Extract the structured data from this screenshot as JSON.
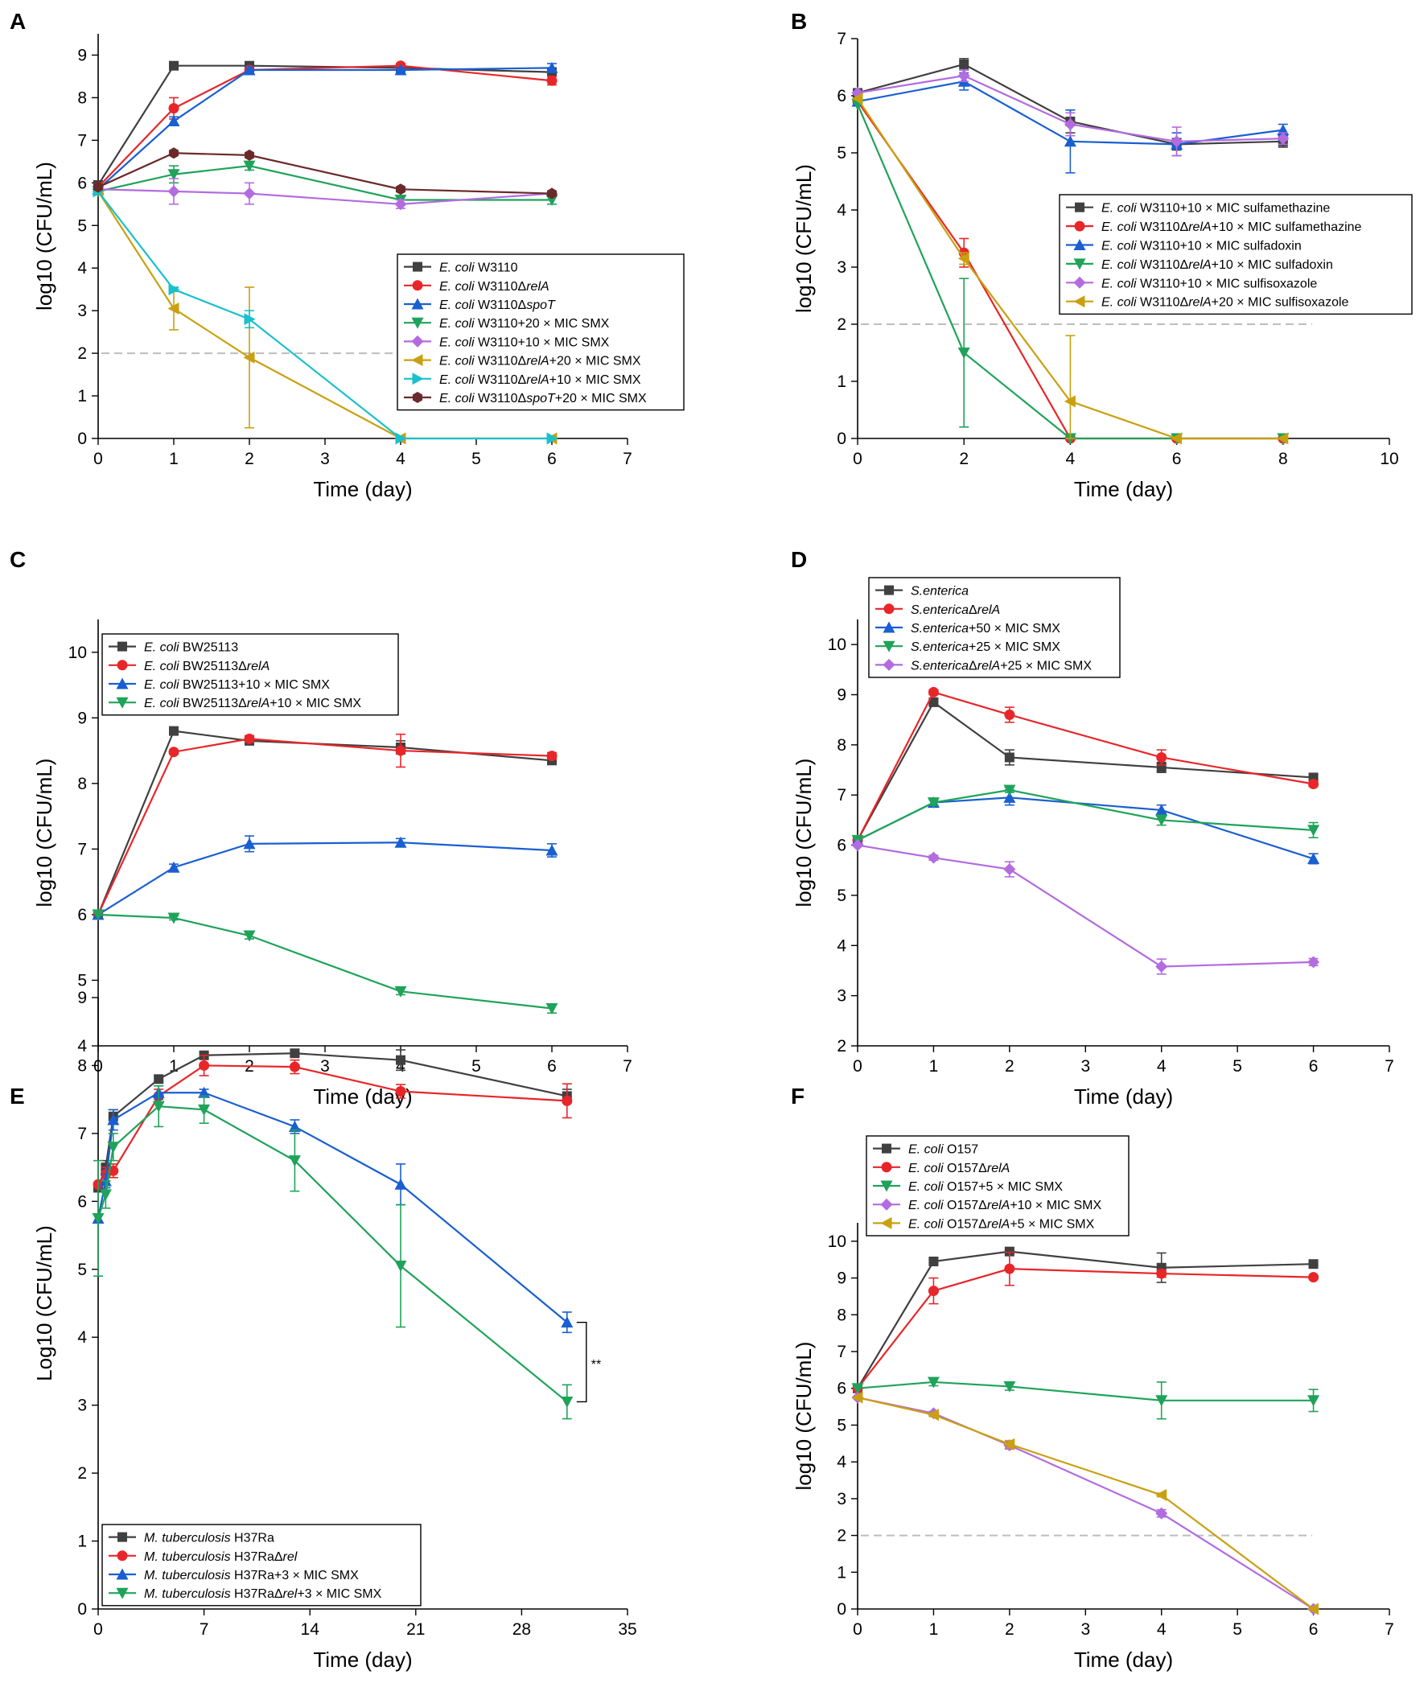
{
  "figure": {
    "panel_labels": [
      "A",
      "B",
      "C",
      "D",
      "E",
      "F"
    ]
  },
  "chart_data": [
    {
      "panel": "A",
      "type": "line",
      "xlabel": "Time (day)",
      "ylabel": "log10 (CFU/mL)",
      "xlim": [
        0,
        7
      ],
      "ylim": [
        0,
        9.5
      ],
      "xticks": [
        0,
        1,
        2,
        3,
        4,
        5,
        6,
        7
      ],
      "yticks": [
        0,
        1,
        2,
        3,
        4,
        5,
        6,
        7,
        8,
        9
      ],
      "reference_line": 2,
      "legend_position": "middle-right",
      "series": [
        {
          "name": "E. coli W3110",
          "color": "#404040",
          "marker": "square",
          "x": [
            0,
            1,
            2,
            4,
            6
          ],
          "y": [
            5.95,
            8.75,
            8.75,
            8.7,
            8.6
          ],
          "err": [
            0,
            0.05,
            0.05,
            0.05,
            0.1
          ]
        },
        {
          "name": "E. coli W3110ΔrelA",
          "color": "#e8262a",
          "marker": "circle",
          "x": [
            0,
            1,
            2,
            4,
            6
          ],
          "y": [
            5.9,
            7.75,
            8.65,
            8.75,
            8.4
          ],
          "err": [
            0,
            0.25,
            0.05,
            0.05,
            0.1
          ]
        },
        {
          "name": "E. coli W3110ΔspoT",
          "color": "#1a5fd1",
          "marker": "triangle-up",
          "x": [
            0,
            1,
            2,
            4,
            6
          ],
          "y": [
            5.85,
            7.45,
            8.65,
            8.65,
            8.7
          ],
          "err": [
            0,
            0.1,
            0.05,
            0.05,
            0.1
          ]
        },
        {
          "name": "E. coli W3110+20 × MIC SMX",
          "color": "#1fa35a",
          "marker": "triangle-down",
          "x": [
            0,
            1,
            2,
            4,
            6
          ],
          "y": [
            5.8,
            6.2,
            6.4,
            5.6,
            5.6
          ],
          "err": [
            0,
            0.2,
            0.1,
            0.1,
            0.1
          ]
        },
        {
          "name": "E. coli W3110+10 × MIC SMX",
          "color": "#b36be0",
          "marker": "diamond",
          "x": [
            0,
            1,
            2,
            4,
            6
          ],
          "y": [
            5.85,
            5.8,
            5.75,
            5.5,
            5.75
          ],
          "err": [
            0,
            0.3,
            0.25,
            0.1,
            0.05
          ]
        },
        {
          "name": "E. coli W3110ΔrelA+20 × MIC SMX",
          "color": "#c9a010",
          "marker": "triangle-left",
          "x": [
            0,
            1,
            2,
            4,
            6
          ],
          "y": [
            5.8,
            3.05,
            1.9,
            0,
            0
          ],
          "err": [
            0,
            0.5,
            1.65,
            0,
            0
          ]
        },
        {
          "name": "E. coli W3110ΔrelA+10 × MIC SMX",
          "color": "#19c1cc",
          "marker": "triangle-right",
          "x": [
            0,
            1,
            2,
            4,
            6
          ],
          "y": [
            5.8,
            3.5,
            2.8,
            0,
            0
          ],
          "err": [
            0,
            0.05,
            0.2,
            0,
            0
          ]
        },
        {
          "name": "E. coli W3110ΔspoT+20 × MIC SMX",
          "color": "#6b2a2a",
          "marker": "hexagon",
          "x": [
            0,
            1,
            2,
            4,
            6
          ],
          "y": [
            5.9,
            6.7,
            6.65,
            5.85,
            5.75
          ],
          "err": [
            0,
            0.05,
            0.05,
            0.05,
            0.05
          ]
        }
      ]
    },
    {
      "panel": "B",
      "type": "line",
      "xlabel": "Time (day)",
      "ylabel": "log10 (CFU/mL)",
      "xlim": [
        0,
        10
      ],
      "ylim": [
        0,
        7
      ],
      "xticks": [
        0,
        2,
        4,
        6,
        8,
        10
      ],
      "yticks": [
        0,
        1,
        2,
        3,
        4,
        5,
        6,
        7
      ],
      "reference_line": 2,
      "legend_position": "middle-right",
      "series": [
        {
          "name": "E. coli W3110+10 × MIC sulfamethazine",
          "color": "#404040",
          "marker": "square",
          "x": [
            0,
            2,
            4,
            6,
            8
          ],
          "y": [
            6.05,
            6.55,
            5.55,
            5.15,
            5.2
          ],
          "err": [
            0,
            0.1,
            0.2,
            0.1,
            0.1
          ]
        },
        {
          "name": "E. coli W3110ΔrelA+10 × MIC sulfamethazine",
          "color": "#e8262a",
          "marker": "circle",
          "x": [
            0,
            2,
            4,
            6,
            8
          ],
          "y": [
            5.9,
            3.25,
            0,
            0,
            0
          ],
          "err": [
            0,
            0.25,
            0,
            0,
            0
          ]
        },
        {
          "name": "E. coli W3110+10 × MIC sulfadoxin",
          "color": "#1a5fd1",
          "marker": "triangle-up",
          "x": [
            0,
            2,
            4,
            6,
            8
          ],
          "y": [
            5.9,
            6.25,
            5.2,
            5.15,
            5.4
          ],
          "err": [
            0,
            0.15,
            0.55,
            0.2,
            0.1
          ]
        },
        {
          "name": "E. coli W3110ΔrelA+10 × MIC sulfadoxin",
          "color": "#1fa35a",
          "marker": "triangle-down",
          "x": [
            0,
            2,
            4,
            6,
            8
          ],
          "y": [
            5.85,
            1.5,
            0,
            0,
            0
          ],
          "err": [
            0,
            1.3,
            0,
            0,
            0
          ]
        },
        {
          "name": "E. coli W3110+10 × MIC sulfisoxazole",
          "color": "#b36be0",
          "marker": "diamond",
          "x": [
            0,
            2,
            4,
            6,
            8
          ],
          "y": [
            6.05,
            6.35,
            5.5,
            5.2,
            5.25
          ],
          "err": [
            0,
            0.1,
            0.2,
            0.25,
            0.1
          ]
        },
        {
          "name": "E. coli W3110ΔrelA+20 × MIC sulfisoxazole",
          "color": "#c9a010",
          "marker": "triangle-left",
          "x": [
            0,
            2,
            4,
            6,
            8
          ],
          "y": [
            5.95,
            3.15,
            0.65,
            0,
            0
          ],
          "err": [
            0,
            0.1,
            1.15,
            0,
            0
          ]
        }
      ]
    },
    {
      "panel": "C",
      "type": "line",
      "xlabel": "Time (day)",
      "ylabel": "log10 (CFU/mL)",
      "xlim": [
        0,
        7
      ],
      "ylim": [
        4,
        10.5
      ],
      "xticks": [
        0,
        1,
        2,
        3,
        4,
        5,
        6,
        7
      ],
      "yticks": [
        4,
        5,
        6,
        7,
        8,
        9,
        10
      ],
      "legend_position": "top-left",
      "series": [
        {
          "name": "E. coli BW25113",
          "color": "#404040",
          "marker": "square",
          "x": [
            0,
            1,
            2,
            4,
            6
          ],
          "y": [
            6.0,
            8.8,
            8.65,
            8.55,
            8.35
          ],
          "err": [
            0,
            0.03,
            0.05,
            0.1,
            0.05
          ]
        },
        {
          "name": "E. coli BW25113ΔrelA",
          "color": "#e8262a",
          "marker": "circle",
          "x": [
            0,
            1,
            2,
            4,
            6
          ],
          "y": [
            6.0,
            8.48,
            8.68,
            8.5,
            8.42
          ],
          "err": [
            0,
            0.03,
            0.05,
            0.25,
            0.05
          ]
        },
        {
          "name": "E. coli BW25113+10 × MIC SMX",
          "color": "#1a5fd1",
          "marker": "triangle-up",
          "x": [
            0,
            1,
            2,
            4,
            6
          ],
          "y": [
            6.0,
            6.72,
            7.08,
            7.1,
            6.98
          ],
          "err": [
            0,
            0.05,
            0.12,
            0.06,
            0.1
          ]
        },
        {
          "name": "E. coli BW25113ΔrelA+10 × MIC SMX",
          "color": "#1fa35a",
          "marker": "triangle-down",
          "x": [
            0,
            1,
            2,
            4,
            6
          ],
          "y": [
            6.0,
            5.95,
            5.68,
            4.83,
            4.57
          ],
          "err": [
            0,
            0.03,
            0.05,
            0.05,
            0.07
          ]
        }
      ]
    },
    {
      "panel": "D",
      "type": "line",
      "xlabel": "Time (day)",
      "ylabel": "log10 (CFU/mL)",
      "xlim": [
        0,
        7
      ],
      "ylim": [
        2,
        10.5
      ],
      "xticks": [
        0,
        1,
        2,
        3,
        4,
        5,
        6,
        7
      ],
      "yticks": [
        2,
        3,
        4,
        5,
        6,
        7,
        8,
        9,
        10
      ],
      "legend_position": "top-left",
      "series": [
        {
          "name": "S.enterica",
          "color": "#404040",
          "marker": "square",
          "x": [
            0,
            1,
            2,
            4,
            6
          ],
          "y": [
            6.1,
            8.85,
            7.75,
            7.55,
            7.35
          ],
          "err": [
            0,
            0.05,
            0.15,
            0.1,
            0.05
          ]
        },
        {
          "name": "S.entericaΔrelA",
          "color": "#e8262a",
          "marker": "circle",
          "x": [
            0,
            1,
            2,
            4,
            6
          ],
          "y": [
            6.1,
            9.05,
            8.6,
            7.75,
            7.22
          ],
          "err": [
            0,
            0.05,
            0.15,
            0.15,
            0.05
          ]
        },
        {
          "name": "S.enterica+50 × MIC SMX",
          "color": "#1a5fd1",
          "marker": "triangle-up",
          "x": [
            0,
            1,
            2,
            4,
            6
          ],
          "y": [
            6.1,
            6.85,
            6.95,
            6.7,
            5.73
          ],
          "err": [
            0,
            0.05,
            0.15,
            0.1,
            0.1
          ]
        },
        {
          "name": "S.enterica+25 × MIC SMX",
          "color": "#1fa35a",
          "marker": "triangle-down",
          "x": [
            0,
            1,
            2,
            4,
            6
          ],
          "y": [
            6.1,
            6.85,
            7.1,
            6.5,
            6.3
          ],
          "err": [
            0,
            0.05,
            0.05,
            0.1,
            0.15
          ]
        },
        {
          "name": "S.entericaΔrelA+25 × MIC SMX",
          "color": "#b36be0",
          "marker": "diamond",
          "x": [
            0,
            1,
            2,
            4,
            6
          ],
          "y": [
            6.0,
            5.75,
            5.52,
            3.58,
            3.67
          ],
          "err": [
            0,
            0.05,
            0.15,
            0.15,
            0.07
          ]
        }
      ]
    },
    {
      "panel": "E",
      "type": "line",
      "xlabel": "Time (day)",
      "ylabel": "Log10 (CFU/mL)",
      "xlim": [
        0,
        35
      ],
      "ylim": [
        0,
        9
      ],
      "xticks": [
        0,
        7,
        14,
        21,
        28,
        35
      ],
      "yticks": [
        0,
        1,
        2,
        3,
        4,
        5,
        6,
        7,
        8,
        9
      ],
      "annotation": "**",
      "legend_position": "bottom-left",
      "series": [
        {
          "name": "M. tuberculosis H37Ra",
          "color": "#404040",
          "marker": "square",
          "x": [
            0,
            0.5,
            1,
            4,
            7,
            13,
            20,
            31
          ],
          "y": [
            6.2,
            6.5,
            7.25,
            7.8,
            8.15,
            8.18,
            8.08,
            7.55
          ],
          "err": [
            0,
            0.1,
            0.1,
            0.05,
            0.05,
            0.05,
            0.15,
            0.1
          ]
        },
        {
          "name": "M. tuberculosis H37RaΔrel",
          "color": "#e8262a",
          "marker": "circle",
          "x": [
            0,
            0.5,
            1,
            4,
            7,
            13,
            20,
            31
          ],
          "y": [
            6.25,
            6.4,
            6.45,
            7.55,
            8.0,
            7.98,
            7.62,
            7.48
          ],
          "err": [
            0,
            0.1,
            0.1,
            0.1,
            0.15,
            0.1,
            0.1,
            0.25
          ]
        },
        {
          "name": "M. tuberculosis H37Ra+3 × MIC SMX",
          "color": "#1a5fd1",
          "marker": "triangle-up",
          "x": [
            0,
            0.5,
            1,
            4,
            7,
            13,
            20,
            31
          ],
          "y": [
            5.75,
            6.3,
            7.2,
            7.6,
            7.6,
            7.1,
            6.25,
            4.22
          ],
          "err": [
            0,
            0.1,
            0.15,
            0.1,
            0.05,
            0.1,
            0.3,
            0.15
          ]
        },
        {
          "name": "M. tuberculosis H37RaΔrel+3 × MIC SMX",
          "color": "#1fa35a",
          "marker": "triangle-down",
          "x": [
            0,
            0.5,
            1,
            4,
            7,
            13,
            20,
            31
          ],
          "y": [
            5.75,
            6.1,
            6.8,
            7.4,
            7.35,
            6.6,
            5.05,
            3.05
          ],
          "err": [
            0.85,
            0.2,
            0.2,
            0.3,
            0.2,
            0.45,
            0.9,
            0.25
          ]
        }
      ]
    },
    {
      "panel": "F",
      "type": "line",
      "xlabel": "Time (day)",
      "ylabel": "log10 (CFU/mL)",
      "xlim": [
        0,
        7
      ],
      "ylim": [
        0,
        10.5
      ],
      "xticks": [
        0,
        1,
        2,
        3,
        4,
        5,
        6,
        7
      ],
      "yticks": [
        0,
        1,
        2,
        3,
        4,
        5,
        6,
        7,
        8,
        9,
        10
      ],
      "reference_line": 2,
      "legend_position": "top-left",
      "series": [
        {
          "name": "E. coli O157",
          "color": "#404040",
          "marker": "square",
          "x": [
            0,
            1,
            2,
            4,
            6
          ],
          "y": [
            6.0,
            9.45,
            9.72,
            9.28,
            9.38
          ],
          "err": [
            0,
            0.05,
            0.05,
            0.4,
            0.05
          ]
        },
        {
          "name": "E. coli O157ΔrelA",
          "color": "#e8262a",
          "marker": "circle",
          "x": [
            0,
            1,
            2,
            4,
            6
          ],
          "y": [
            6.0,
            8.65,
            9.25,
            9.12,
            9.02
          ],
          "err": [
            0,
            0.35,
            0.45,
            0.1,
            0.05
          ]
        },
        {
          "name": "E. coli O157+5 × MIC SMX",
          "color": "#1fa35a",
          "marker": "triangle-down",
          "x": [
            0,
            1,
            2,
            4,
            6
          ],
          "y": [
            6.0,
            6.17,
            6.05,
            5.67,
            5.67
          ],
          "err": [
            0,
            0.1,
            0.1,
            0.5,
            0.3
          ]
        },
        {
          "name": "E. coli O157ΔrelA+10 × MIC SMX",
          "color": "#b36be0",
          "marker": "diamond",
          "x": [
            0,
            1,
            2,
            4,
            6
          ],
          "y": [
            5.75,
            5.32,
            4.45,
            2.6,
            0
          ],
          "err": [
            0,
            0.05,
            0.1,
            0.1,
            0
          ]
        },
        {
          "name": "E. coli O157ΔrelA+5 × MIC SMX",
          "color": "#c9a010",
          "marker": "triangle-left",
          "x": [
            0,
            1,
            2,
            4,
            6
          ],
          "y": [
            5.75,
            5.28,
            4.48,
            3.1,
            0
          ],
          "err": [
            0,
            0.05,
            0.1,
            0.05,
            0
          ]
        }
      ]
    }
  ]
}
